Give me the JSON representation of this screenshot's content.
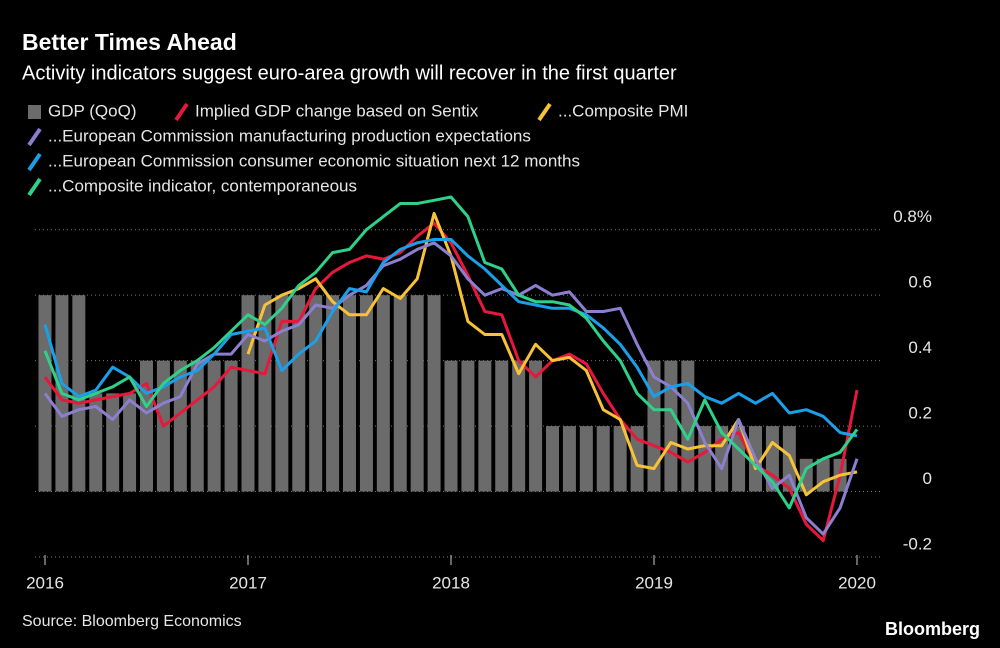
{
  "chart_data": {
    "type": "line",
    "title": "Better Times Ahead",
    "subtitle": "Activity indicators suggest euro-area growth will recover in the first quarter",
    "source": "Source: Bloomberg Economics",
    "logo": "Bloomberg",
    "categories": [
      "2016",
      null,
      null,
      null,
      null,
      null,
      null,
      null,
      null,
      null,
      null,
      null,
      "2017",
      null,
      null,
      null,
      null,
      null,
      null,
      null,
      null,
      null,
      null,
      null,
      "2018",
      null,
      null,
      null,
      null,
      null,
      null,
      null,
      null,
      null,
      null,
      null,
      "2019",
      null,
      null,
      null,
      null,
      null,
      null,
      null,
      null,
      null,
      null,
      null,
      "2020"
    ],
    "ylim": [
      -0.2,
      0.9
    ],
    "yticks": [
      -0.2,
      0,
      0.2,
      0.4,
      0.6,
      {
        "value": 0.8,
        "label": "0.8%"
      }
    ],
    "grid": true,
    "bars": {
      "name": "GDP (QoQ)",
      "color": "#6b6b6b",
      "values": [
        0.6,
        0.6,
        0.6,
        0.3,
        0.3,
        0.3,
        0.4,
        0.4,
        0.4,
        0.4,
        0.4,
        0.4,
        0.6,
        0.6,
        0.6,
        0.6,
        0.6,
        0.6,
        0.6,
        0.6,
        0.6,
        0.6,
        0.6,
        0.6,
        0.4,
        0.4,
        0.4,
        0.4,
        0.4,
        0.4,
        0.2,
        0.2,
        0.2,
        0.2,
        0.2,
        0.2,
        0.4,
        0.4,
        0.4,
        0.2,
        0.2,
        0.2,
        0.2,
        0.2,
        0.2,
        0.1,
        0.1,
        0.1,
        null
      ]
    },
    "series": [
      {
        "name": "Implied GDP change based on Sentix",
        "color": "#e8173c",
        "values": [
          0.35,
          0.28,
          0.27,
          0.28,
          0.29,
          0.3,
          0.33,
          0.2,
          0.24,
          0.28,
          0.32,
          0.38,
          0.37,
          0.36,
          0.52,
          0.52,
          0.62,
          0.67,
          0.7,
          0.72,
          0.71,
          0.73,
          0.78,
          0.82,
          0.76,
          0.66,
          0.55,
          0.54,
          0.4,
          0.35,
          0.4,
          0.42,
          0.39,
          0.3,
          0.22,
          0.16,
          0.14,
          0.12,
          0.09,
          0.12,
          0.16,
          0.18,
          0.08,
          0.05,
          0.01,
          -0.1,
          -0.15,
          0.05,
          0.31
        ]
      },
      {
        "name": "...Composite PMI",
        "color": "#f8c237",
        "values": [
          null,
          null,
          null,
          null,
          null,
          null,
          null,
          null,
          null,
          null,
          null,
          null,
          0.42,
          0.57,
          0.6,
          0.62,
          0.65,
          0.58,
          0.54,
          0.54,
          0.62,
          0.59,
          0.65,
          0.85,
          0.72,
          0.52,
          0.48,
          0.48,
          0.36,
          0.45,
          0.4,
          0.41,
          0.37,
          0.25,
          0.22,
          0.08,
          0.07,
          0.15,
          0.13,
          0.14,
          0.14,
          0.22,
          0.07,
          0.15,
          0.11,
          -0.01,
          0.03,
          0.05,
          0.06
        ]
      },
      {
        "name": "...European Commission manufacturing production expectations",
        "color": "#8b7fd0",
        "values": [
          0.3,
          0.23,
          0.25,
          0.26,
          0.22,
          0.28,
          0.24,
          0.27,
          0.29,
          0.39,
          0.42,
          0.42,
          0.48,
          0.46,
          0.49,
          0.51,
          0.57,
          0.56,
          0.6,
          0.63,
          0.69,
          0.71,
          0.74,
          0.76,
          0.72,
          0.65,
          0.6,
          0.62,
          0.6,
          0.63,
          0.6,
          0.61,
          0.55,
          0.55,
          0.56,
          0.45,
          0.35,
          0.32,
          0.27,
          0.15,
          0.07,
          0.22,
          0.1,
          0.01,
          0.05,
          -0.08,
          -0.13,
          -0.05,
          0.1
        ]
      },
      {
        "name": "...European Commission consumer economic situation next 12 months",
        "color": "#1aa0e8",
        "values": [
          0.51,
          0.33,
          0.29,
          0.31,
          0.38,
          0.35,
          0.3,
          0.32,
          0.35,
          0.37,
          0.42,
          0.48,
          0.49,
          0.5,
          0.37,
          0.42,
          0.46,
          0.55,
          0.62,
          0.61,
          0.7,
          0.74,
          0.76,
          0.77,
          0.77,
          0.72,
          0.68,
          0.63,
          0.58,
          0.57,
          0.56,
          0.56,
          0.54,
          0.5,
          0.45,
          0.38,
          0.29,
          0.32,
          0.33,
          0.29,
          0.27,
          0.3,
          0.27,
          0.3,
          0.24,
          0.25,
          0.23,
          0.18,
          0.17
        ]
      },
      {
        "name": "...Composite indicator, contemporaneous",
        "color": "#2fd18a",
        "values": [
          0.43,
          0.3,
          0.28,
          0.3,
          0.32,
          0.35,
          0.26,
          0.33,
          0.37,
          0.4,
          0.44,
          0.49,
          0.54,
          0.51,
          0.56,
          0.63,
          0.67,
          0.73,
          0.74,
          0.8,
          0.84,
          0.88,
          0.88,
          0.89,
          0.9,
          0.84,
          0.7,
          0.68,
          0.6,
          0.58,
          0.58,
          0.57,
          0.53,
          0.46,
          0.4,
          0.3,
          0.25,
          0.25,
          0.16,
          0.28,
          0.18,
          0.13,
          0.08,
          0.03,
          -0.05,
          0.07,
          0.1,
          0.12,
          0.19
        ]
      }
    ]
  }
}
